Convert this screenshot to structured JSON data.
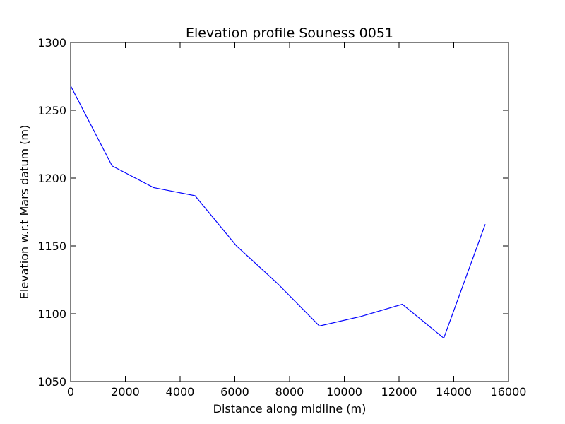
{
  "chart_data": {
    "type": "line",
    "title": "Elevation profile Souness 0051",
    "xlabel": "Distance along midline (m)",
    "ylabel": "Elevation w.r.t Mars datum (m)",
    "xlim": [
      0,
      16000
    ],
    "ylim": [
      1050,
      1300
    ],
    "xticks": [
      0,
      2000,
      4000,
      6000,
      8000,
      10000,
      12000,
      14000,
      16000
    ],
    "yticks": [
      1050,
      1100,
      1150,
      1200,
      1250,
      1300
    ],
    "grid": false,
    "line_color": "#0000ff",
    "series": [
      {
        "x": [
          0,
          1515,
          3030,
          4545,
          6060,
          7575,
          9090,
          10605,
          12120,
          13635,
          15150
        ],
        "y": [
          1268,
          1209,
          1193,
          1187,
          1150,
          1122,
          1091,
          1098,
          1107,
          1082,
          1166
        ]
      }
    ]
  }
}
